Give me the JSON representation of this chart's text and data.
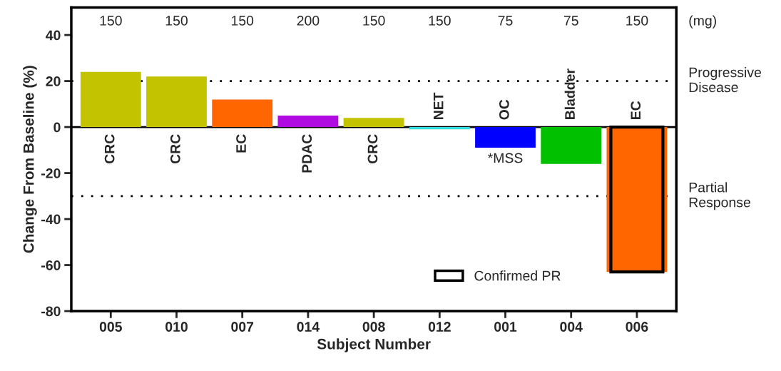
{
  "chart_data": {
    "type": "bar",
    "categories": [
      "005",
      "010",
      "007",
      "014",
      "008",
      "012",
      "001",
      "004",
      "006"
    ],
    "series": [
      {
        "colors": [
          "#c3c300",
          "#c3c300",
          "#ff6600",
          "#b00be0",
          "#c3c300",
          "#33dddd",
          "#0000ff",
          "#00c000",
          "#ff6600"
        ],
        "values": [
          24,
          22,
          12,
          5,
          4,
          -1,
          -9,
          -16,
          -63
        ]
      },
      {
        "name": "Confirmed PR",
        "type": "bar",
        "color": "#000000",
        "values": [
          null,
          null,
          null,
          null,
          null,
          null,
          null,
          null,
          -63
        ]
      }
    ],
    "ylim": [
      -80,
      52
    ],
    "yticks": [
      -80,
      -60,
      -40,
      -20,
      0,
      20,
      40
    ],
    "xlabel": "Subject Number",
    "ylabel": "Change From Baseline (%)",
    "ref_lines": [
      {
        "axis": "y",
        "value": 20,
        "label": "Progressive\nDisease",
        "color": "#000000",
        "line_style": "dotted"
      },
      {
        "axis": "y",
        "value": -30,
        "label": "Partial\nResponse",
        "color": "#000000",
        "line_style": "dotted"
      }
    ],
    "annotations": [
      "CRC",
      "CRC",
      "EC",
      "PDAC",
      "CRC",
      "NET",
      "OC",
      "Bladder",
      "EC",
      "150",
      "150",
      "150",
      "200",
      "150",
      "150",
      "75",
      "75",
      "150",
      "(mg)",
      {
        "text": "*MSS",
        "x": "001",
        "y": -9
      }
    ],
    "grid": false,
    "legend": "bottom right"
  }
}
